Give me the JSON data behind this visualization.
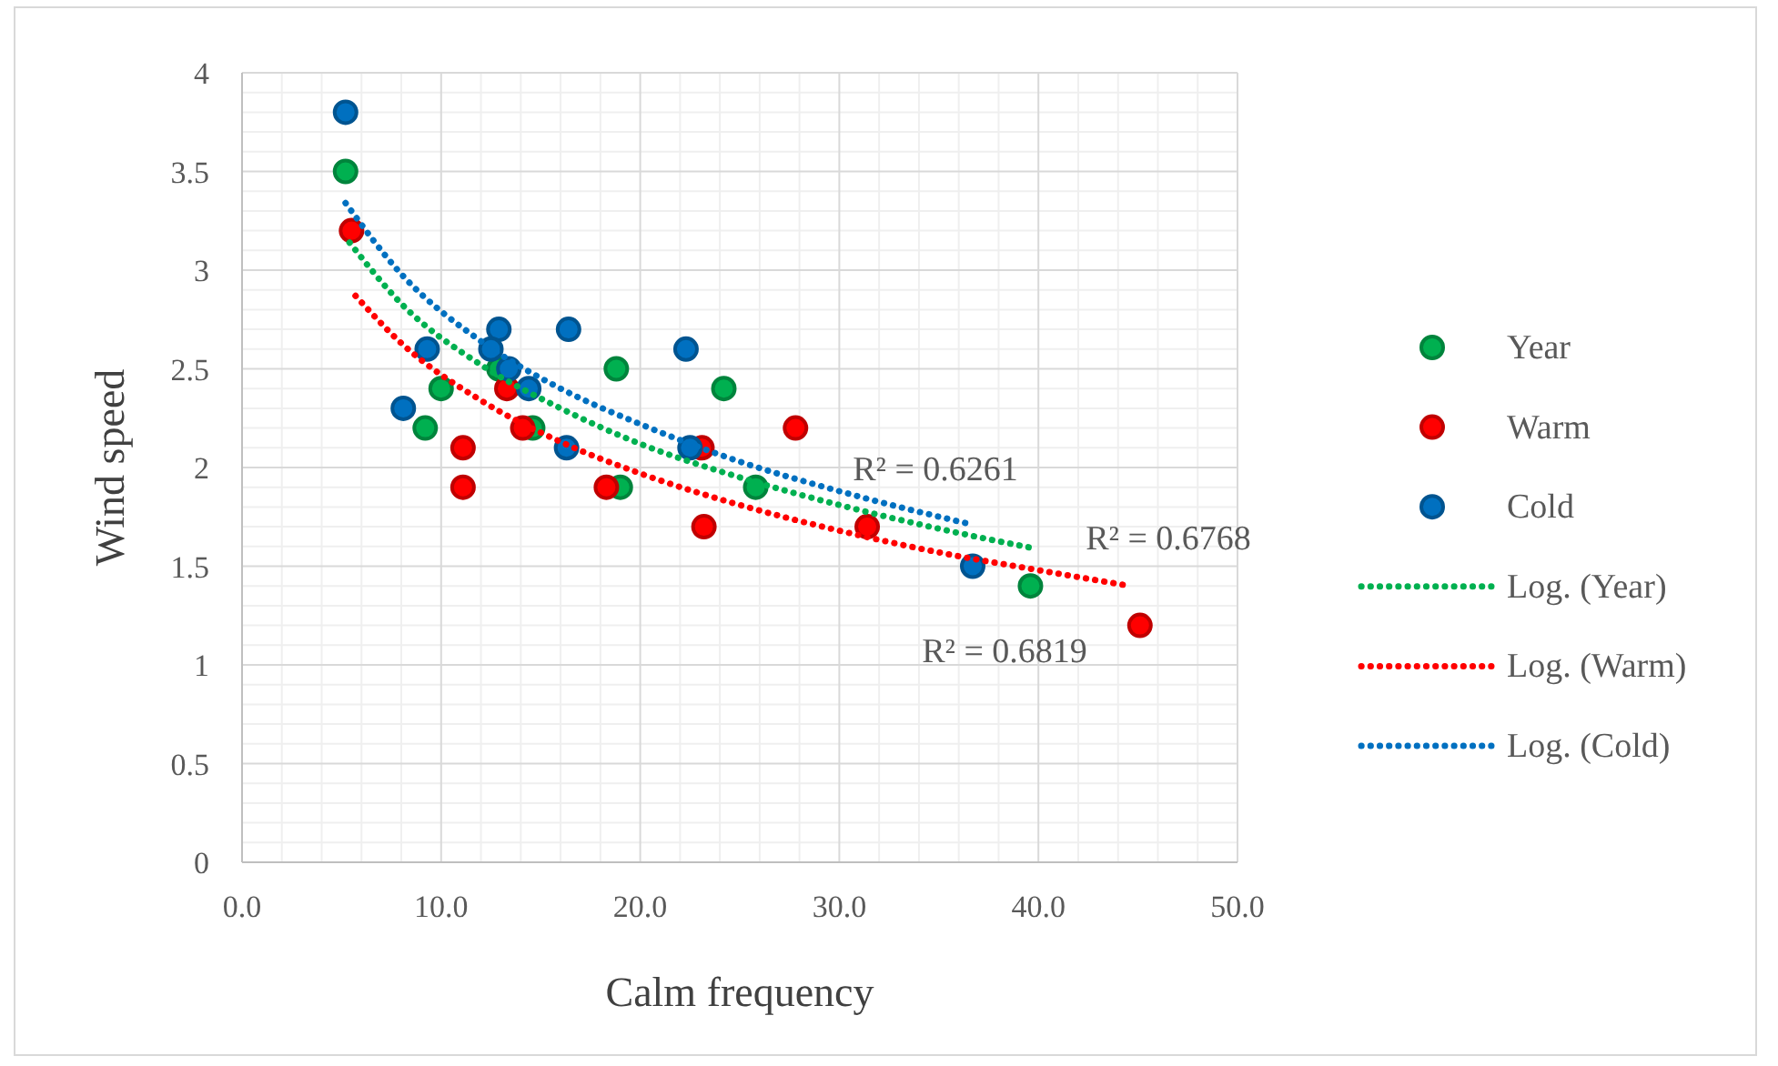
{
  "chart_data": {
    "type": "scatter",
    "xlabel": "Calm frequency",
    "ylabel": "Wind speed",
    "xlim": [
      0,
      50
    ],
    "xticks": [
      {
        "value": 0,
        "label": "0.0"
      },
      {
        "value": 10,
        "label": "10.0"
      },
      {
        "value": 20,
        "label": "20.0"
      },
      {
        "value": 30,
        "label": "30.0"
      },
      {
        "value": 40,
        "label": "40.0"
      },
      {
        "value": 50,
        "label": "50.0"
      }
    ],
    "ylim": [
      0,
      4
    ],
    "yticks": [
      0,
      0.5,
      1,
      1.5,
      2,
      2.5,
      3,
      3.5,
      4
    ],
    "grid": true,
    "legend": "right",
    "marker": "circle",
    "series": [
      {
        "name": "Year",
        "color": "#00b050",
        "x": [
          5.2,
          9.2,
          10.0,
          12.9,
          14.6,
          18.8,
          19.0,
          24.2,
          25.8,
          39.6
        ],
        "values": [
          3.5,
          2.2,
          2.4,
          2.5,
          2.2,
          2.5,
          1.9,
          2.4,
          1.9,
          1.4
        ]
      },
      {
        "name": "Warm",
        "color": "#ff0000",
        "x": [
          5.5,
          11.1,
          11.1,
          13.3,
          14.1,
          18.3,
          23.1,
          27.8,
          23.2,
          31.4,
          45.1
        ],
        "values": [
          3.2,
          2.1,
          1.9,
          2.4,
          2.2,
          1.9,
          2.1,
          2.2,
          1.7,
          1.7,
          1.2
        ]
      },
      {
        "name": "Cold",
        "color": "#0070c0",
        "x": [
          5.2,
          8.1,
          9.3,
          12.9,
          12.5,
          13.4,
          14.4,
          16.4,
          16.3,
          22.3,
          22.5,
          36.7
        ],
        "values": [
          3.8,
          2.3,
          2.6,
          2.7,
          2.6,
          2.5,
          2.4,
          2.7,
          2.1,
          2.6,
          2.1,
          1.5
        ]
      },
      {
        "name": "Log. (Year)",
        "type": "line",
        "line_style": "dotted",
        "marker": "none",
        "color": "#00b050",
        "x": [
          5.4,
          8,
          12,
          16,
          20,
          25,
          30,
          35,
          39.8
        ],
        "values": [
          3.14,
          2.83,
          2.52,
          2.3,
          2.12,
          1.95,
          1.81,
          1.69,
          1.59
        ]
      },
      {
        "name": "Log. (Warm)",
        "type": "line",
        "line_style": "dotted",
        "marker": "none",
        "color": "#ff0000",
        "x": [
          5.7,
          8,
          12,
          16,
          20,
          25,
          30,
          35,
          40,
          44.6
        ],
        "values": [
          2.87,
          2.63,
          2.34,
          2.13,
          1.97,
          1.81,
          1.68,
          1.57,
          1.48,
          1.4
        ]
      },
      {
        "name": "Log. (Cold)",
        "type": "line",
        "line_style": "dotted",
        "marker": "none",
        "color": "#0070c0",
        "x": [
          5.2,
          8,
          12,
          16,
          20,
          25,
          30,
          36.7
        ],
        "values": [
          3.34,
          2.98,
          2.64,
          2.4,
          2.22,
          2.03,
          1.88,
          1.71
        ]
      }
    ],
    "annotations": [
      "R² = 0.6261",
      "R² = 0.6768",
      "R² = 0.6819"
    ]
  }
}
